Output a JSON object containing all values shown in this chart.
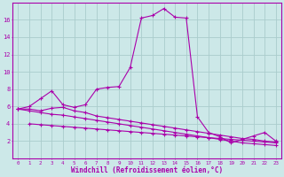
{
  "background_color": "#cce8e8",
  "grid_color": "#aacccc",
  "line_color": "#aa00aa",
  "xlabel": "Windchill (Refroidissement éolien,°C)",
  "xlim": [
    -0.5,
    23.5
  ],
  "ylim": [
    0,
    18
  ],
  "yticks": [
    2,
    4,
    6,
    8,
    10,
    12,
    14,
    16
  ],
  "xticks": [
    0,
    1,
    2,
    3,
    4,
    5,
    6,
    7,
    8,
    9,
    10,
    11,
    12,
    13,
    14,
    15,
    16,
    17,
    18,
    19,
    20,
    21,
    22,
    23
  ],
  "series": [
    {
      "x": [
        0,
        1,
        2,
        3,
        4,
        5,
        6,
        7,
        8,
        9,
        10,
        11,
        12,
        13,
        14,
        15,
        16,
        17,
        18,
        19,
        20,
        21,
        22,
        23
      ],
      "y": [
        5.7,
        6.0,
        6.9,
        7.8,
        6.2,
        5.9,
        6.2,
        8.0,
        8.2,
        8.3,
        10.5,
        16.2,
        16.5,
        17.3,
        16.3,
        16.2,
        4.8,
        3.0,
        2.5,
        1.8,
        2.2,
        2.6,
        3.0,
        2.0
      ]
    },
    {
      "x": [
        0,
        1,
        2,
        3,
        4,
        5,
        6,
        7,
        8,
        9,
        10,
        11,
        12,
        13,
        14,
        15,
        16,
        17,
        18,
        19,
        20,
        21,
        22,
        23
      ],
      "y": [
        5.7,
        5.7,
        5.5,
        5.8,
        5.9,
        5.5,
        5.3,
        4.9,
        4.7,
        4.5,
        4.3,
        4.1,
        3.9,
        3.7,
        3.5,
        3.3,
        3.1,
        2.9,
        2.7,
        2.5,
        2.3,
        2.2,
        2.0,
        1.9
      ]
    },
    {
      "x": [
        0,
        1,
        2,
        3,
        4,
        5,
        6,
        7,
        8,
        9,
        10,
        11,
        12,
        13,
        14,
        15,
        16,
        17,
        18,
        19,
        20,
        21,
        22,
        23
      ],
      "y": [
        5.7,
        5.5,
        5.3,
        5.1,
        5.0,
        4.8,
        4.6,
        4.4,
        4.2,
        4.0,
        3.8,
        3.6,
        3.4,
        3.2,
        3.0,
        2.8,
        2.6,
        2.4,
        2.2,
        2.0,
        1.8,
        1.7,
        1.6,
        1.5
      ]
    },
    {
      "x": [
        1,
        2,
        3,
        4,
        5,
        6,
        7,
        8,
        9,
        10,
        11,
        12,
        13,
        14,
        15,
        16,
        17,
        18,
        19,
        20,
        21,
        22,
        23
      ],
      "y": [
        4.0,
        3.9,
        3.8,
        3.7,
        3.6,
        3.5,
        3.4,
        3.3,
        3.2,
        3.1,
        3.0,
        2.9,
        2.8,
        2.7,
        2.6,
        2.5,
        2.4,
        2.3,
        2.2,
        2.1,
        2.0,
        1.9,
        1.8
      ]
    }
  ]
}
